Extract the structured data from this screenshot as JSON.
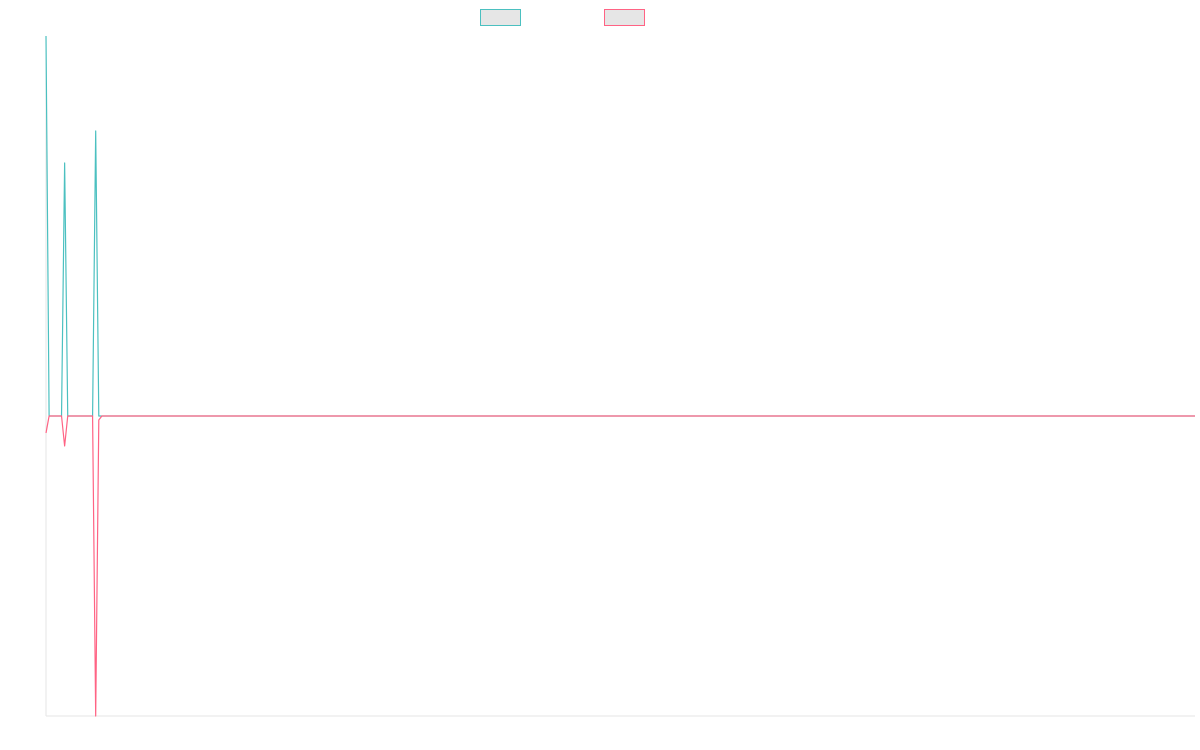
{
  "chart_data": {
    "type": "line",
    "x": [
      0,
      1,
      5,
      6,
      7,
      15,
      16,
      17,
      18,
      370
    ],
    "xlim": [
      0,
      370
    ],
    "ylim": [
      -3,
      3.8
    ],
    "series": [
      {
        "color": "#4bc0c0",
        "values": [
          3.8,
          0,
          0,
          2.53,
          0,
          0,
          2.85,
          0,
          0,
          0
        ]
      },
      {
        "color": "#ff6384",
        "values": [
          -0.17,
          0,
          0,
          -0.3,
          0,
          0,
          -3,
          -0.04,
          0,
          0
        ]
      }
    ]
  }
}
